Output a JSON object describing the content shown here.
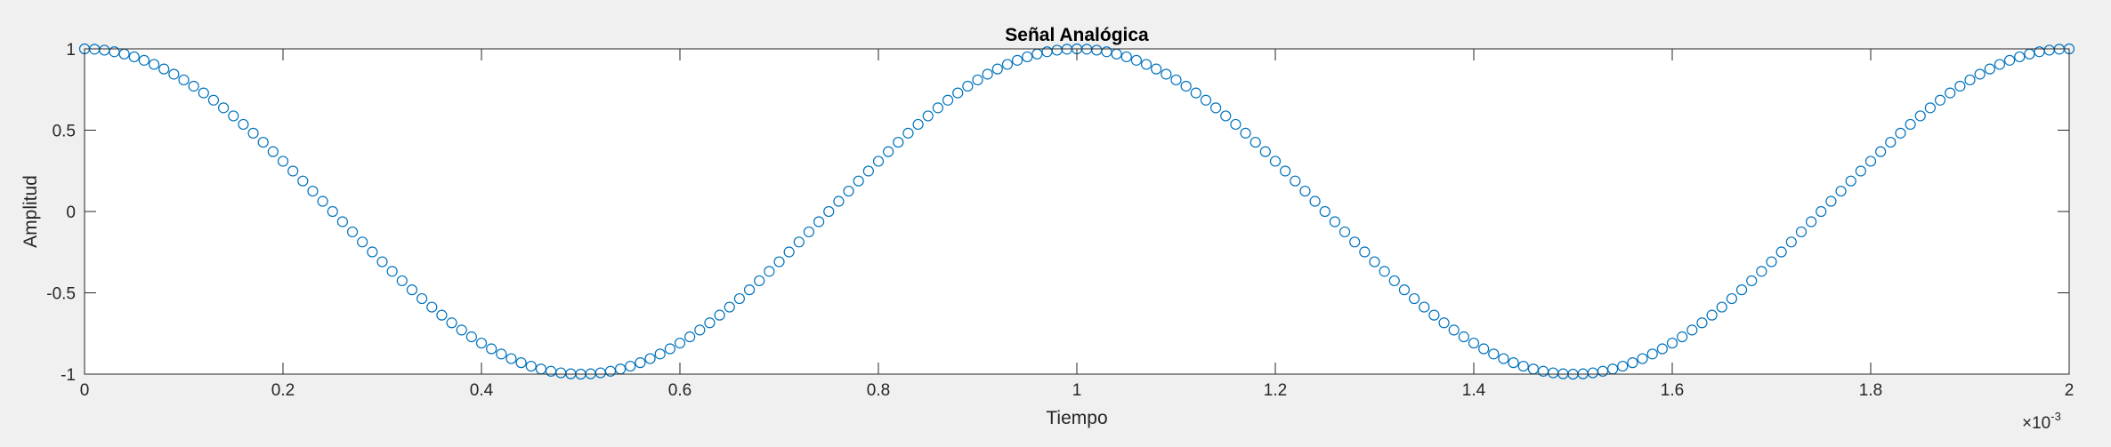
{
  "chart_data": {
    "type": "scatter",
    "title": "Señal Analógica",
    "xlabel": "Tiempo",
    "ylabel": "Amplitud",
    "x_exponent_label": "×10",
    "x_exponent_power": "-3",
    "xlim": [
      0,
      2
    ],
    "ylim": [
      -1,
      1
    ],
    "x_ticks": [
      0,
      0.2,
      0.4,
      0.6,
      0.8,
      1,
      1.2,
      1.4,
      1.6,
      1.8,
      2
    ],
    "x_tick_labels": [
      "0",
      "0.2",
      "0.4",
      "0.6",
      "0.8",
      "1",
      "1.2",
      "1.4",
      "1.6",
      "1.8",
      "2"
    ],
    "y_ticks": [
      1,
      0.5,
      0,
      -0.5,
      -1
    ],
    "y_tick_labels": [
      "1",
      "0.5",
      "0",
      "-0.5",
      "-1"
    ],
    "grid": false,
    "line_style": "none",
    "marker": "circle",
    "series": [
      {
        "function": "cos(2π·1000·t)",
        "x_start": 0,
        "x_end": 2,
        "n_points": 201,
        "color": "#0072bd"
      }
    ]
  },
  "colors": {
    "figure_background": "#f0f0f0",
    "axes_background": "#ffffff",
    "axis_line": "#262626",
    "marker": "#0072bd"
  }
}
